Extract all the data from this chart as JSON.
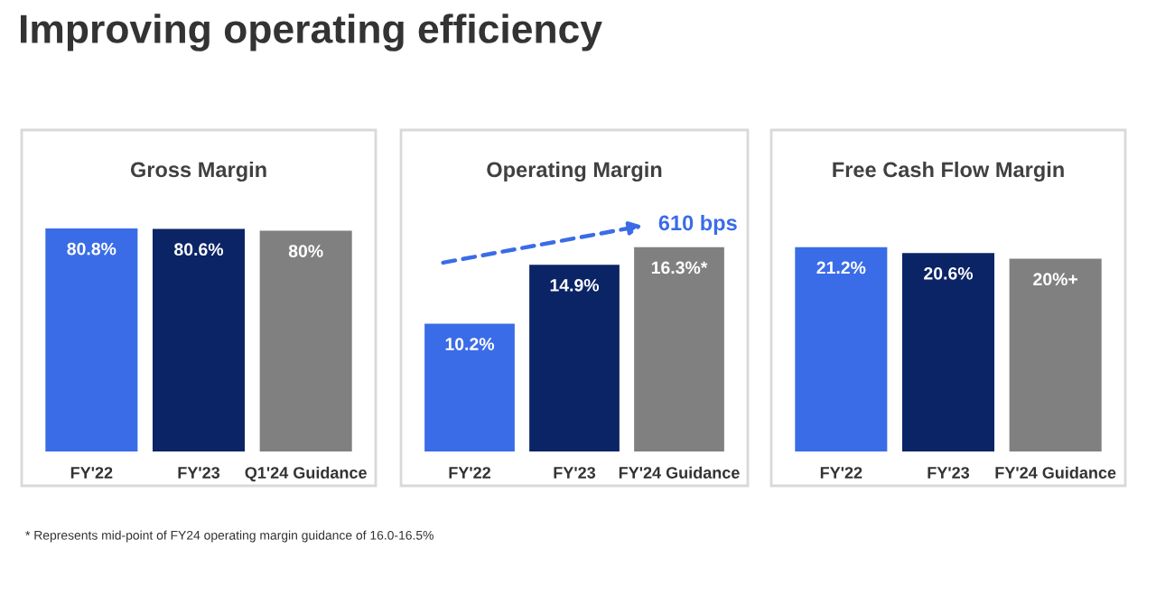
{
  "chart_data": [
    {
      "type": "bar",
      "title": "Gross Margin",
      "annotations": [
        "Improving operating efficiency"
      ],
      "categories": [
        "FY'22",
        "FY'23",
        "Q1'24 Guidance"
      ],
      "values": [
        80.8,
        80.6,
        80
      ],
      "colors": [
        "#3a6ce8",
        "#0b2466",
        "#808080"
      ],
      "value_labels": [
        "80.8%",
        "80.6%",
        "80%"
      ],
      "grid": false,
      "legend": false
    },
    {
      "type": "bar",
      "title": "Operating Margin",
      "annotations": [
        "610 bps",
        "* Represents mid-point of FY24 operating margin guidance of 16.0-16.5%"
      ],
      "categories": [
        "FY'22",
        "FY'23",
        "FY'24 Guidance"
      ],
      "values": [
        10.2,
        14.9,
        16.3
      ],
      "colors": [
        "#3a6ce8",
        "#0b2466",
        "#808080"
      ],
      "value_labels": [
        "10.2%",
        "14.9%",
        "16.3%*"
      ],
      "grid": false,
      "legend": false
    },
    {
      "type": "bar",
      "title": "Free Cash Flow Margin",
      "categories": [
        "FY'22",
        "FY'23",
        "FY'24 Guidance"
      ],
      "values": [
        21.2,
        20.6,
        20
      ],
      "colors": [
        "#3a6ce8",
        "#0b2466",
        "#808080"
      ],
      "value_labels": [
        "21.2%",
        "20.6%",
        "20%+"
      ],
      "grid": false,
      "legend": false
    }
  ]
}
